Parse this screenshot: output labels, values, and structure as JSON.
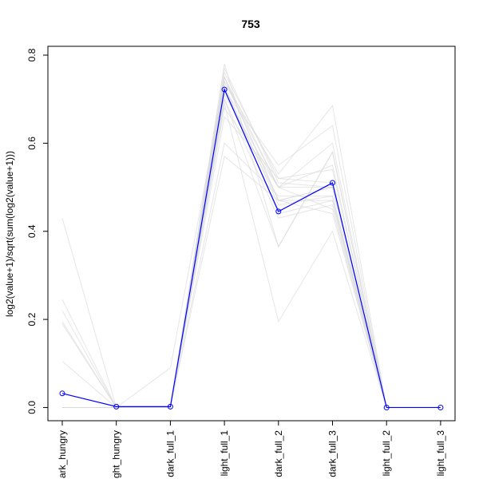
{
  "chart_data": {
    "type": "line",
    "title": "753",
    "xlabel": "",
    "ylabel": "log2(value+1)/sqrt(sum(log2(value+1)))",
    "categories": [
      "dark_hungry",
      "light_hungry",
      "dark_full_1",
      "light_full_1",
      "dark_full_2",
      "dark_full_3",
      "light_full_2",
      "light_full_3"
    ],
    "category_labels_visible": [
      "ark_hungry",
      "ght_hungry",
      "dark_full_1",
      "light_full_1",
      "dark_full_2",
      "dark_full_3",
      "light_full_2",
      "light_full_3"
    ],
    "ylim": [
      -0.03,
      0.82
    ],
    "yticks": [
      "0.0",
      "0.2",
      "0.4",
      "0.6",
      "0.8"
    ],
    "grid": false,
    "highlight_series": {
      "values": [
        0.032,
        0.002,
        0.002,
        0.722,
        0.445,
        0.51,
        0.0,
        0.0
      ],
      "color": "#0000ff"
    },
    "background_series": [
      {
        "values": [
          0.43,
          0.0,
          0.0,
          0.75,
          0.47,
          0.47,
          0.0,
          0.0
        ]
      },
      {
        "values": [
          0.245,
          0.0,
          0.0,
          0.78,
          0.365,
          0.58,
          0.0,
          0.0
        ]
      },
      {
        "values": [
          0.22,
          0.0,
          0.0,
          0.7,
          0.365,
          0.58,
          0.0,
          0.0
        ]
      },
      {
        "values": [
          0.195,
          0.0,
          0.0,
          0.72,
          0.47,
          0.5,
          0.0,
          0.0
        ]
      },
      {
        "values": [
          0.19,
          0.0,
          0.0,
          0.73,
          0.46,
          0.48,
          0.0,
          0.0
        ]
      },
      {
        "values": [
          0.105,
          0.0,
          0.0,
          0.75,
          0.5,
          0.5,
          0.0,
          0.0
        ]
      },
      {
        "values": [
          0.0,
          0.0,
          0.09,
          0.74,
          0.5,
          0.45,
          0.0,
          0.0
        ]
      },
      {
        "values": [
          0.0,
          0.0,
          0.0,
          0.68,
          0.5,
          0.55,
          0.0,
          0.0
        ]
      },
      {
        "values": [
          0.0,
          0.0,
          0.0,
          0.76,
          0.52,
          0.51,
          0.0,
          0.0
        ]
      },
      {
        "values": [
          0.0,
          0.0,
          0.0,
          0.6,
          0.48,
          0.48,
          0.0,
          0.0
        ]
      },
      {
        "values": [
          0.0,
          0.0,
          0.0,
          0.57,
          0.47,
          0.44,
          0.0,
          0.0
        ]
      },
      {
        "values": [
          0.0,
          0.0,
          0.0,
          0.69,
          0.195,
          0.4,
          0.0,
          0.0
        ]
      },
      {
        "values": [
          0.0,
          0.0,
          0.0,
          0.74,
          0.53,
          0.685,
          0.0,
          0.0
        ]
      },
      {
        "values": [
          0.0,
          0.0,
          0.0,
          0.72,
          0.55,
          0.64,
          0.0,
          0.0
        ]
      },
      {
        "values": [
          0.0,
          0.0,
          0.0,
          0.71,
          0.5,
          0.6,
          0.0,
          0.0
        ]
      },
      {
        "values": [
          0.0,
          0.0,
          0.0,
          0.73,
          0.44,
          0.47,
          0.0,
          0.0
        ]
      },
      {
        "values": [
          0.0,
          0.0,
          0.0,
          0.7,
          0.43,
          0.46,
          0.0,
          0.0
        ]
      },
      {
        "values": [
          0.0,
          0.0,
          0.0,
          0.77,
          0.51,
          0.5,
          0.0,
          0.0
        ]
      },
      {
        "values": [
          0.0,
          0.0,
          0.0,
          0.66,
          0.52,
          0.54,
          0.0,
          0.0
        ]
      },
      {
        "values": [
          0.0,
          0.0,
          0.0,
          0.75,
          0.47,
          0.5,
          0.0,
          0.0
        ]
      }
    ],
    "background_color": "#d9d9d9"
  }
}
